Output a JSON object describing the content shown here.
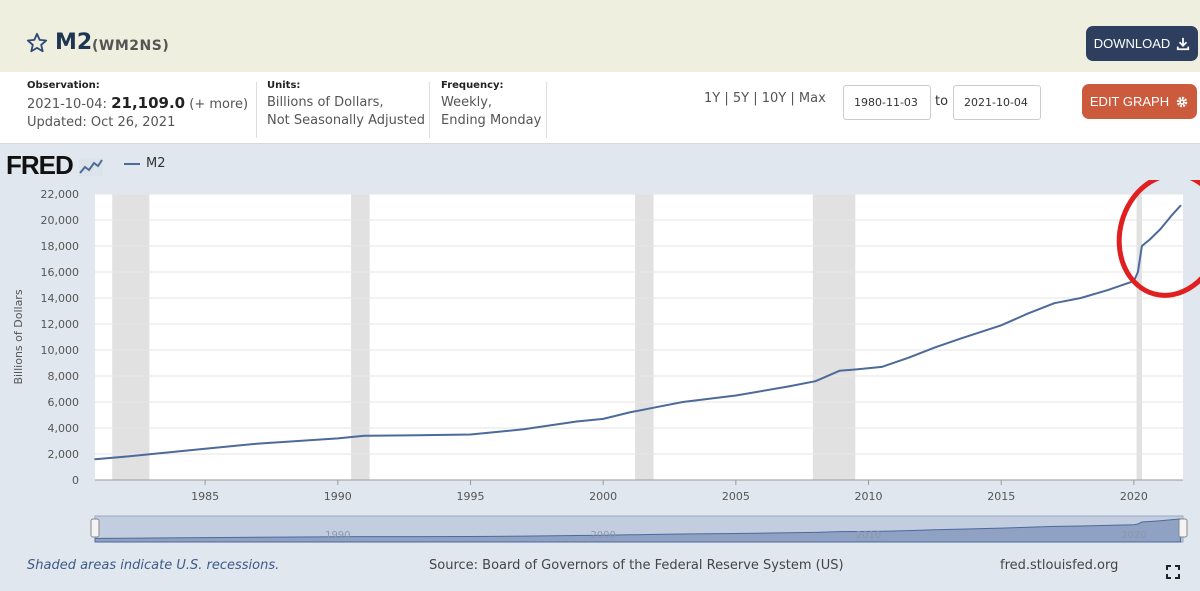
{
  "header": {
    "title": "M2",
    "series_id": "(WM2NS)",
    "download_label": "DOWNLOAD"
  },
  "meta": {
    "observation_label": "Observation:",
    "observation_date": "2021-10-04:",
    "observation_value": "21,109.0",
    "observation_more": "(+ more)",
    "updated": "Updated: Oct 26, 2021",
    "units_label": "Units:",
    "units_line1": "Billions of Dollars,",
    "units_line2": "Not Seasonally Adjusted",
    "frequency_label": "Frequency:",
    "frequency_line1": "Weekly,",
    "frequency_line2": "Ending Monday"
  },
  "range": {
    "links": [
      "1Y",
      "5Y",
      "10Y",
      "Max"
    ],
    "start_date": "1980-11-03",
    "to_label": "to",
    "end_date": "2021-10-04"
  },
  "edit_label": "EDIT GRAPH",
  "logo": "FRED",
  "footer": {
    "note": "Shaded areas indicate U.S. recessions.",
    "source": "Source: Board of Governors of the Federal Reserve System (US)",
    "site": "fred.stlouisfed.org"
  },
  "colors": {
    "line": "#4c6a9a",
    "recession": "#e1e1e1",
    "annotation": "#e02020"
  },
  "chart_data": {
    "type": "line",
    "title": "M2",
    "ylabel": "Billions of Dollars",
    "xlabel": "",
    "xlim": [
      1980.85,
      2021.85
    ],
    "ylim": [
      0,
      22000
    ],
    "y_ticks": [
      0,
      2000,
      4000,
      6000,
      8000,
      10000,
      12000,
      14000,
      16000,
      18000,
      20000,
      22000
    ],
    "y_tick_labels": [
      "0",
      "2,000",
      "4,000",
      "6,000",
      "8,000",
      "10,000",
      "12,000",
      "14,000",
      "16,000",
      "18,000",
      "20,000",
      "22,000"
    ],
    "x_ticks": [
      1985,
      1990,
      1995,
      2000,
      2005,
      2010,
      2015,
      2020
    ],
    "x_tick_labels": [
      "1985",
      "1990",
      "1995",
      "2000",
      "2005",
      "2010",
      "2015",
      "2020"
    ],
    "legend": [
      "M2"
    ],
    "recessions": [
      [
        1981.5,
        1982.9
      ],
      [
        1990.5,
        1991.2
      ],
      [
        2001.2,
        2001.9
      ],
      [
        2007.9,
        2009.5
      ],
      [
        2020.1,
        2020.3
      ]
    ],
    "series": [
      {
        "name": "M2",
        "x": [
          1980.85,
          1982,
          1983,
          1985,
          1987,
          1990,
          1991,
          1993,
          1995,
          1997,
          1999,
          2000,
          2001,
          2002,
          2003,
          2005,
          2007,
          2008,
          2008.9,
          2009.5,
          2010.5,
          2011.5,
          2012.5,
          2013.5,
          2015,
          2016,
          2017,
          2018,
          2019,
          2020.0,
          2020.15,
          2020.3,
          2020.6,
          2021.0,
          2021.4,
          2021.76
        ],
        "y": [
          1600,
          1800,
          2000,
          2400,
          2800,
          3200,
          3400,
          3450,
          3500,
          3900,
          4500,
          4700,
          5200,
          5600,
          6000,
          6500,
          7200,
          7600,
          8400,
          8500,
          8700,
          9400,
          10200,
          10900,
          11900,
          12800,
          13600,
          14000,
          14600,
          15300,
          16000,
          18000,
          18500,
          19300,
          20300,
          21109
        ]
      }
    ],
    "navigator_labels": [
      "1990",
      "2000",
      "2010",
      "2020"
    ],
    "annotation": "red ellipse around 2020-2021 spike"
  }
}
